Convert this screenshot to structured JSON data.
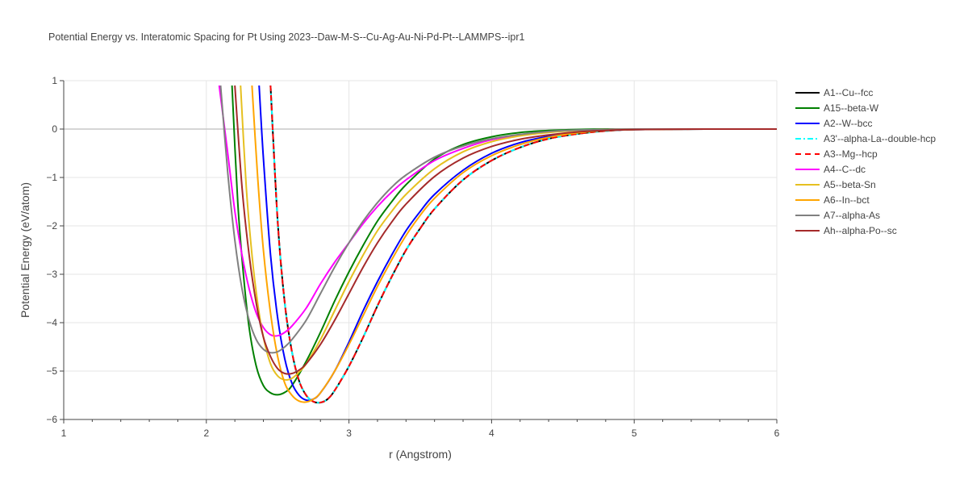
{
  "chart_data": {
    "type": "line",
    "title": "Potential Energy vs. Interatomic Spacing for Pt Using 2023--Daw-M-S--Cu-Ag-Au-Ni-Pd-Pt--LAMMPS--ipr1",
    "xlabel": "r (Angstrom)",
    "ylabel": "Potential Energy (eV/atom)",
    "xlim": [
      1,
      6
    ],
    "ylim": [
      -6,
      1
    ],
    "xticks": [
      "1",
      "2",
      "3",
      "4",
      "5",
      "6"
    ],
    "yticks": [
      "1",
      "0",
      "−1",
      "−2",
      "−3",
      "−4",
      "−5",
      "−6"
    ],
    "grid": true,
    "legend_position": "right",
    "series": [
      {
        "name": "A1--Cu--fcc",
        "color": "#000000",
        "dash": "solid",
        "x": [
          2.45,
          2.5,
          2.55,
          2.6,
          2.65,
          2.7,
          2.75,
          2.8,
          2.85,
          2.9,
          3.0,
          3.1,
          3.2,
          3.3,
          3.4,
          3.5,
          3.6,
          3.8,
          4.0,
          4.2,
          4.4,
          4.6,
          4.8,
          5.0,
          5.5,
          6.0
        ],
        "y": [
          0.9,
          -1.9,
          -3.6,
          -4.6,
          -5.2,
          -5.5,
          -5.63,
          -5.65,
          -5.58,
          -5.4,
          -4.9,
          -4.3,
          -3.65,
          -3.05,
          -2.5,
          -2.05,
          -1.65,
          -1.05,
          -0.65,
          -0.38,
          -0.2,
          -0.1,
          -0.04,
          -0.01,
          0,
          0
        ]
      },
      {
        "name": "A15--beta-W",
        "color": "#008000",
        "dash": "solid",
        "x": [
          2.18,
          2.22,
          2.26,
          2.3,
          2.35,
          2.4,
          2.45,
          2.5,
          2.55,
          2.6,
          2.7,
          2.8,
          2.9,
          3.0,
          3.1,
          3.2,
          3.3,
          3.4,
          3.6,
          3.8,
          4.0,
          4.2,
          4.4,
          4.6,
          4.8,
          5.0,
          5.5,
          6.0
        ],
        "y": [
          0.9,
          -1.5,
          -3.0,
          -4.1,
          -4.9,
          -5.3,
          -5.45,
          -5.49,
          -5.44,
          -5.3,
          -4.8,
          -4.2,
          -3.55,
          -2.95,
          -2.4,
          -1.9,
          -1.5,
          -1.15,
          -0.62,
          -0.32,
          -0.16,
          -0.07,
          -0.03,
          -0.01,
          0,
          0,
          0,
          0
        ]
      },
      {
        "name": "A2--W--bcc",
        "color": "#0000ff",
        "dash": "solid",
        "x": [
          2.37,
          2.4,
          2.45,
          2.5,
          2.55,
          2.6,
          2.65,
          2.7,
          2.75,
          2.8,
          2.9,
          3.0,
          3.1,
          3.2,
          3.3,
          3.4,
          3.5,
          3.6,
          3.8,
          4.0,
          4.2,
          4.4,
          4.6,
          4.8,
          5.0,
          5.5,
          6.0
        ],
        "y": [
          0.9,
          -0.6,
          -2.6,
          -3.9,
          -4.75,
          -5.25,
          -5.5,
          -5.6,
          -5.58,
          -5.45,
          -5.0,
          -4.4,
          -3.75,
          -3.15,
          -2.6,
          -2.1,
          -1.7,
          -1.35,
          -0.85,
          -0.5,
          -0.28,
          -0.15,
          -0.07,
          -0.03,
          -0.01,
          0,
          0
        ]
      },
      {
        "name": "A3'--alpha-La--double-hcp",
        "color": "#00ffff",
        "dash": "dashdot",
        "x": [
          2.45,
          2.5,
          2.55,
          2.6,
          2.65,
          2.7,
          2.75,
          2.8,
          2.85,
          2.9,
          3.0,
          3.1,
          3.2,
          3.3,
          3.4,
          3.5,
          3.6,
          3.8,
          4.0,
          4.2,
          4.4,
          4.6,
          4.8,
          5.0,
          5.5,
          6.0
        ],
        "y": [
          0.9,
          -1.9,
          -3.6,
          -4.6,
          -5.2,
          -5.5,
          -5.63,
          -5.65,
          -5.58,
          -5.4,
          -4.9,
          -4.3,
          -3.65,
          -3.05,
          -2.5,
          -2.05,
          -1.65,
          -1.05,
          -0.65,
          -0.38,
          -0.2,
          -0.1,
          -0.04,
          -0.01,
          0,
          0
        ]
      },
      {
        "name": "A3--Mg--hcp",
        "color": "#ff0000",
        "dash": "dash",
        "x": [
          2.45,
          2.5,
          2.55,
          2.6,
          2.65,
          2.7,
          2.75,
          2.8,
          2.85,
          2.9,
          3.0,
          3.1,
          3.2,
          3.3,
          3.4,
          3.5,
          3.6,
          3.8,
          4.0,
          4.2,
          4.4,
          4.6,
          4.8,
          5.0,
          5.5,
          6.0
        ],
        "y": [
          0.9,
          -1.9,
          -3.6,
          -4.6,
          -5.2,
          -5.5,
          -5.63,
          -5.65,
          -5.58,
          -5.4,
          -4.9,
          -4.3,
          -3.65,
          -3.05,
          -2.5,
          -2.05,
          -1.65,
          -1.05,
          -0.65,
          -0.38,
          -0.2,
          -0.1,
          -0.04,
          -0.01,
          0,
          0
        ]
      },
      {
        "name": "A4--C--dc",
        "color": "#ff00ff",
        "dash": "solid",
        "x": [
          2.09,
          2.15,
          2.2,
          2.25,
          2.3,
          2.35,
          2.4,
          2.45,
          2.5,
          2.55,
          2.6,
          2.7,
          2.8,
          2.9,
          3.0,
          3.1,
          3.2,
          3.3,
          3.4,
          3.6,
          3.8,
          4.0,
          4.2,
          4.4,
          4.6,
          4.8,
          5.0,
          5.5,
          6.0
        ],
        "y": [
          0.9,
          -0.5,
          -1.7,
          -2.6,
          -3.3,
          -3.8,
          -4.1,
          -4.25,
          -4.27,
          -4.2,
          -4.07,
          -3.7,
          -3.2,
          -2.75,
          -2.35,
          -1.95,
          -1.6,
          -1.3,
          -1.05,
          -0.65,
          -0.4,
          -0.22,
          -0.12,
          -0.06,
          -0.03,
          -0.01,
          0,
          0,
          0
        ]
      },
      {
        "name": "A5--beta-Sn",
        "color": "#e6c020",
        "dash": "solid",
        "x": [
          2.24,
          2.28,
          2.32,
          2.36,
          2.4,
          2.45,
          2.5,
          2.55,
          2.6,
          2.65,
          2.7,
          2.8,
          2.9,
          3.0,
          3.1,
          3.2,
          3.3,
          3.4,
          3.6,
          3.8,
          4.0,
          4.2,
          4.4,
          4.6,
          4.8,
          5.0,
          5.5,
          6.0
        ],
        "y": [
          0.9,
          -1.2,
          -2.6,
          -3.6,
          -4.3,
          -4.85,
          -5.1,
          -5.18,
          -5.15,
          -5.02,
          -4.85,
          -4.35,
          -3.75,
          -3.15,
          -2.6,
          -2.1,
          -1.7,
          -1.35,
          -0.82,
          -0.47,
          -0.26,
          -0.14,
          -0.07,
          -0.03,
          -0.01,
          0,
          0,
          0
        ]
      },
      {
        "name": "A6--In--bct",
        "color": "#ffa500",
        "dash": "solid",
        "x": [
          2.32,
          2.36,
          2.4,
          2.45,
          2.5,
          2.55,
          2.6,
          2.65,
          2.7,
          2.75,
          2.8,
          2.9,
          3.0,
          3.1,
          3.2,
          3.3,
          3.4,
          3.5,
          3.6,
          3.8,
          4.0,
          4.2,
          4.4,
          4.6,
          4.8,
          5.0,
          5.5,
          6.0
        ],
        "y": [
          0.9,
          -1.0,
          -2.5,
          -3.8,
          -4.7,
          -5.25,
          -5.5,
          -5.62,
          -5.64,
          -5.58,
          -5.45,
          -5.0,
          -4.45,
          -3.85,
          -3.25,
          -2.7,
          -2.2,
          -1.78,
          -1.43,
          -0.9,
          -0.55,
          -0.32,
          -0.17,
          -0.08,
          -0.03,
          -0.01,
          0,
          0
        ]
      },
      {
        "name": "A7--alpha-As",
        "color": "#808080",
        "dash": "solid",
        "x": [
          2.1,
          2.15,
          2.2,
          2.25,
          2.3,
          2.35,
          2.4,
          2.45,
          2.5,
          2.55,
          2.6,
          2.7,
          2.8,
          2.9,
          3.0,
          3.1,
          3.2,
          3.3,
          3.4,
          3.6,
          3.8,
          4.0,
          4.2,
          4.4,
          4.6,
          4.8,
          5.0,
          5.5,
          6.0
        ],
        "y": [
          0.9,
          -0.9,
          -2.3,
          -3.3,
          -3.95,
          -4.35,
          -4.55,
          -4.62,
          -4.6,
          -4.5,
          -4.35,
          -3.95,
          -3.4,
          -2.85,
          -2.35,
          -1.9,
          -1.52,
          -1.2,
          -0.95,
          -0.58,
          -0.35,
          -0.2,
          -0.11,
          -0.05,
          -0.02,
          -0.01,
          0,
          0,
          0
        ]
      },
      {
        "name": "Ah--alpha-Po--sc",
        "color": "#a52a2a",
        "dash": "solid",
        "x": [
          2.2,
          2.25,
          2.3,
          2.35,
          2.4,
          2.45,
          2.5,
          2.55,
          2.6,
          2.65,
          2.7,
          2.8,
          2.9,
          3.0,
          3.1,
          3.2,
          3.3,
          3.4,
          3.6,
          3.8,
          4.0,
          4.2,
          4.4,
          4.6,
          4.8,
          5.0,
          5.5,
          6.0
        ],
        "y": [
          0.9,
          -1.2,
          -2.6,
          -3.6,
          -4.3,
          -4.7,
          -4.95,
          -5.05,
          -5.05,
          -4.98,
          -4.85,
          -4.45,
          -3.95,
          -3.4,
          -2.85,
          -2.35,
          -1.92,
          -1.55,
          -0.98,
          -0.6,
          -0.36,
          -0.21,
          -0.12,
          -0.06,
          -0.03,
          -0.01,
          0,
          0
        ]
      }
    ]
  }
}
